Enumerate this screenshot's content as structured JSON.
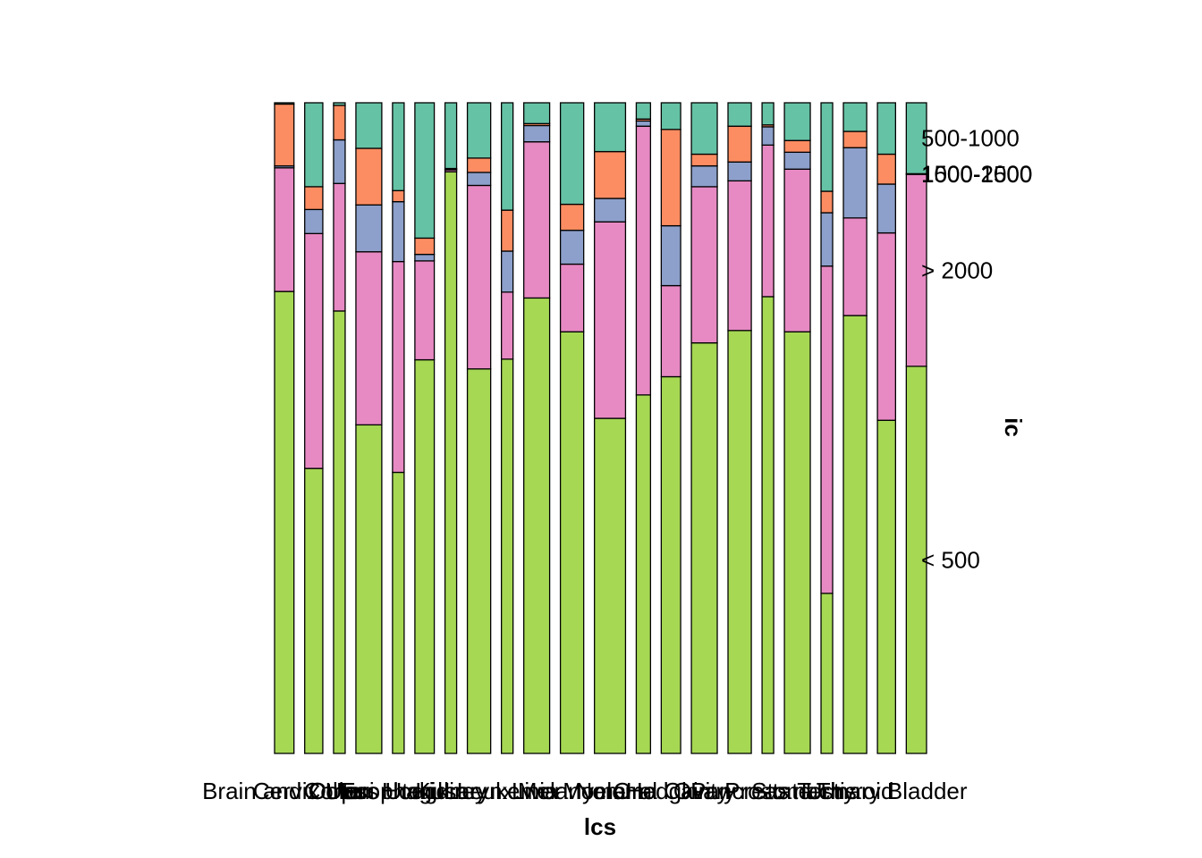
{
  "chart_data": {
    "type": "mosaic",
    "xlabel": "lcs",
    "ylabel": "ic",
    "x_tick_labels": [
      "Brain and Other",
      "Cervix Uteri",
      "Colon",
      "Corpus Uteri",
      "Esophagus",
      "Hodgkin",
      "Kidney",
      "Larynx",
      "Leukemia",
      "Liver",
      "Melanoma",
      "Myeloma",
      "Non-Hodgkin",
      "Oral Cavity",
      "Ovary",
      "Pancreas",
      "Prostate",
      "Stomach",
      "Testis",
      "Thyroid",
      "Urinary Bladder"
    ],
    "series_order": [
      "< 500",
      "> 2000",
      "1000-1500",
      "1500-2000",
      "500-1000"
    ],
    "series_labels": [
      "< 500",
      "> 2000",
      "1000-1500",
      "1500-2000",
      "500-1000"
    ],
    "colors": {
      "< 500": "#a6d854",
      "> 2000": "#e78ac3",
      "1000-1500": "#8da0cb",
      "1500-2000": "#fc8d62",
      "500-1000": "#66c2a5"
    },
    "categories": [
      {
        "name": "Brain and Other",
        "share": 0.0317,
        "fractions": [
          0.71,
          0.19,
          0.003,
          0.095,
          0.002
        ]
      },
      {
        "name": "Cervix Uteri",
        "share": 0.0296,
        "fractions": [
          0.438,
          0.361,
          0.037,
          0.035,
          0.129
        ]
      },
      {
        "name": "Colon",
        "share": 0.019,
        "fractions": [
          0.68,
          0.196,
          0.067,
          0.053,
          0.004
        ]
      },
      {
        "name": "Corpus Uteri",
        "share": 0.0423,
        "fractions": [
          0.505,
          0.266,
          0.072,
          0.087,
          0.07
        ]
      },
      {
        "name": "Esophagus",
        "share": 0.019,
        "fractions": [
          0.432,
          0.324,
          0.092,
          0.017,
          0.135
        ]
      },
      {
        "name": "Hodgkin",
        "share": 0.0317,
        "fractions": [
          0.605,
          0.152,
          0.01,
          0.025,
          0.208
        ]
      },
      {
        "name": "Kidney",
        "share": 0.019,
        "fractions": [
          0.894,
          0.003,
          0.001,
          0.001,
          0.101
        ]
      },
      {
        "name": "Larynx",
        "share": 0.0381,
        "fractions": [
          0.591,
          0.282,
          0.02,
          0.022,
          0.085
        ]
      },
      {
        "name": "Leukemia",
        "share": 0.019,
        "fractions": [
          0.606,
          0.103,
          0.063,
          0.063,
          0.165
        ]
      },
      {
        "name": "Liver",
        "share": 0.0423,
        "fractions": [
          0.7,
          0.24,
          0.025,
          0.003,
          0.032
        ]
      },
      {
        "name": "Melanoma",
        "share": 0.0381,
        "fractions": [
          0.648,
          0.104,
          0.052,
          0.04,
          0.156
        ]
      },
      {
        "name": "Myeloma",
        "share": 0.0508,
        "fractions": [
          0.515,
          0.302,
          0.036,
          0.072,
          0.075
        ]
      },
      {
        "name": "Non-Hodgkin",
        "share": 0.0233,
        "fractions": [
          0.551,
          0.413,
          0.008,
          0.003,
          0.025
        ]
      },
      {
        "name": "Oral Cavity",
        "share": 0.0317,
        "fractions": [
          0.579,
          0.14,
          0.092,
          0.148,
          0.041
        ]
      },
      {
        "name": "Ovary",
        "share": 0.0423,
        "fractions": [
          0.631,
          0.24,
          0.032,
          0.018,
          0.079
        ]
      },
      {
        "name": "Pancreas",
        "share": 0.0381,
        "fractions": [
          0.65,
          0.23,
          0.029,
          0.055,
          0.036
        ]
      },
      {
        "name": "Prostate",
        "share": 0.019,
        "fractions": [
          0.702,
          0.233,
          0.028,
          0.003,
          0.034
        ]
      },
      {
        "name": "Stomach",
        "share": 0.0423,
        "fractions": [
          0.648,
          0.25,
          0.026,
          0.018,
          0.058
        ]
      },
      {
        "name": "Testis",
        "share": 0.019,
        "fractions": [
          0.246,
          0.503,
          0.082,
          0.033,
          0.136
        ]
      },
      {
        "name": "Thyroid",
        "share": 0.0381,
        "fractions": [
          0.673,
          0.15,
          0.108,
          0.025,
          0.044
        ]
      },
      {
        "name": "Urinary Bladder",
        "share": 0.0296,
        "fractions": [
          0.512,
          0.288,
          0.075,
          0.046,
          0.079
        ]
      },
      {
        "name": "",
        "share": 0.0331,
        "fractions": [
          0.595,
          0.295,
          0.0,
          0.001,
          0.109
        ]
      }
    ]
  }
}
